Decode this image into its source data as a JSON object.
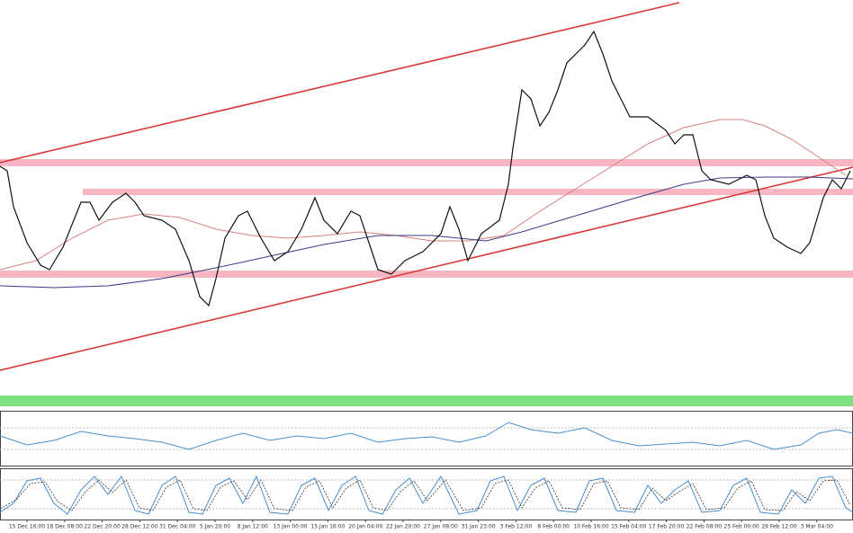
{
  "time_axis": {
    "labels": [
      "15 Dec 16:00",
      "18 Dec 08:00",
      "22 Dec 20:00",
      "28 Dec 12:00",
      "31 Dec 04:00",
      "5 Jan 20:00",
      "8 Jan 12:00",
      "13 Jan 00:00",
      "15 Jan 16:00",
      "20 Jan 04:00",
      "22 Jan 20:00",
      "27 Jan 08:00",
      "31 Jan 23:00",
      "3 Feb 12:00",
      "8 Feb 00:00",
      "10 Feb 16:00",
      "15 Feb 04:00",
      "17 Feb 20:00",
      "22 Feb 08:00",
      "25 Feb 00:00",
      "29 Feb 12:00",
      "3 Mar 04:00"
    ]
  }
}
